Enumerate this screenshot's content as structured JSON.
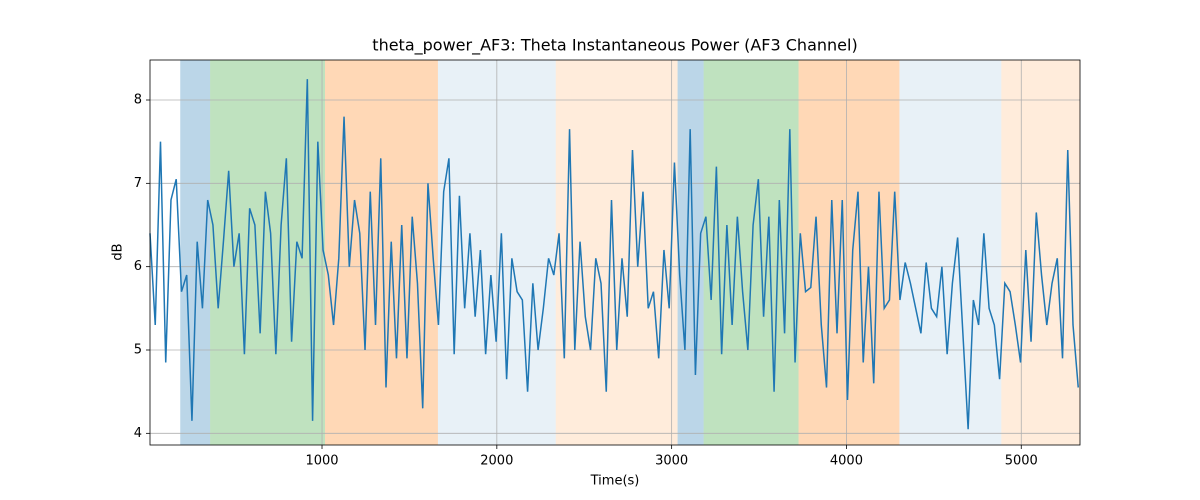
{
  "chart_data": {
    "type": "line",
    "title": "theta_power_AF3: Theta Instantaneous Power (AF3 Channel)",
    "xlabel": "Time(s)",
    "ylabel": "dB",
    "xlim": [
      16,
      5336
    ],
    "ylim": [
      3.86,
      8.48
    ],
    "xticks": [
      1000,
      2000,
      3000,
      4000,
      5000
    ],
    "yticks": [
      4,
      5,
      6,
      7,
      8
    ],
    "grid": true,
    "spans": [
      {
        "start": 189,
        "end": 360,
        "color": "#1f77b4",
        "opacity": 0.3
      },
      {
        "start": 360,
        "end": 1017,
        "color": "#2ca02c",
        "opacity": 0.3
      },
      {
        "start": 1017,
        "end": 1663,
        "color": "#ff7f0e",
        "opacity": 0.3
      },
      {
        "start": 1663,
        "end": 2337,
        "color": "#1f77b4",
        "opacity": 0.1
      },
      {
        "start": 2337,
        "end": 3034,
        "color": "#ff7f0e",
        "opacity": 0.15
      },
      {
        "start": 3034,
        "end": 3183,
        "color": "#1f77b4",
        "opacity": 0.3
      },
      {
        "start": 3183,
        "end": 3726,
        "color": "#2ca02c",
        "opacity": 0.3
      },
      {
        "start": 3726,
        "end": 4303,
        "color": "#ff7f0e",
        "opacity": 0.3
      },
      {
        "start": 4303,
        "end": 4886,
        "color": "#1f77b4",
        "opacity": 0.1
      },
      {
        "start": 4886,
        "end": 5336,
        "color": "#ff7f0e",
        "opacity": 0.15
      }
    ],
    "x": [
      16,
      46,
      76,
      106,
      136,
      166,
      196,
      226,
      256,
      286,
      316,
      346,
      376,
      406,
      436,
      466,
      496,
      526,
      556,
      586,
      616,
      646,
      676,
      706,
      736,
      766,
      796,
      826,
      856,
      886,
      916,
      946,
      976,
      1006,
      1036,
      1066,
      1096,
      1126,
      1156,
      1186,
      1216,
      1246,
      1276,
      1306,
      1336,
      1366,
      1396,
      1426,
      1456,
      1486,
      1516,
      1546,
      1576,
      1606,
      1636,
      1666,
      1696,
      1726,
      1756,
      1786,
      1816,
      1846,
      1876,
      1906,
      1936,
      1966,
      1996,
      2026,
      2056,
      2086,
      2116,
      2146,
      2176,
      2206,
      2236,
      2266,
      2296,
      2326,
      2356,
      2386,
      2416,
      2446,
      2476,
      2506,
      2536,
      2566,
      2596,
      2626,
      2656,
      2686,
      2716,
      2746,
      2776,
      2806,
      2836,
      2866,
      2896,
      2926,
      2956,
      2986,
      3016,
      3046,
      3076,
      3106,
      3136,
      3166,
      3196,
      3226,
      3256,
      3286,
      3316,
      3346,
      3376,
      3406,
      3436,
      3466,
      3496,
      3526,
      3556,
      3586,
      3616,
      3646,
      3676,
      3706,
      3736,
      3766,
      3796,
      3826,
      3856,
      3886,
      3916,
      3946,
      3976,
      4006,
      4036,
      4066,
      4096,
      4126,
      4156,
      4186,
      4216,
      4246,
      4276,
      4306,
      4336,
      4366,
      4396,
      4426,
      4456,
      4486,
      4516,
      4546,
      4576,
      4606,
      4636,
      4666,
      4696,
      4726,
      4756,
      4786,
      4816,
      4846,
      4876,
      4906,
      4936,
      4966,
      4996,
      5026,
      5056,
      5086,
      5116,
      5146,
      5176,
      5206,
      5236,
      5266,
      5296,
      5326
    ],
    "series": [
      {
        "name": "theta_power_AF3",
        "color": "#1f77b4",
        "values": [
          6.4,
          5.3,
          7.5,
          4.85,
          6.8,
          7.05,
          5.7,
          5.9,
          4.15,
          6.3,
          5.5,
          6.8,
          6.5,
          5.5,
          6.3,
          7.15,
          6.0,
          6.4,
          4.95,
          6.7,
          6.5,
          5.2,
          6.9,
          6.4,
          4.95,
          6.5,
          7.3,
          5.1,
          6.3,
          6.1,
          8.25,
          4.15,
          7.5,
          6.2,
          5.9,
          5.3,
          6.1,
          7.8,
          6.0,
          6.8,
          6.4,
          5.0,
          6.9,
          5.3,
          7.3,
          4.55,
          6.3,
          4.9,
          6.5,
          4.9,
          6.6,
          5.8,
          4.3,
          7.0,
          6.1,
          5.3,
          6.9,
          7.3,
          4.95,
          6.85,
          5.5,
          6.4,
          5.4,
          6.2,
          4.95,
          5.9,
          5.1,
          6.4,
          4.65,
          6.1,
          5.7,
          5.6,
          4.5,
          5.8,
          5.0,
          5.5,
          6.1,
          5.9,
          6.4,
          4.9,
          7.65,
          5.0,
          6.3,
          5.4,
          5.0,
          6.1,
          5.8,
          4.5,
          6.8,
          5.0,
          6.1,
          5.4,
          7.4,
          6.0,
          6.9,
          5.5,
          5.7,
          4.9,
          6.2,
          5.5,
          7.25,
          5.9,
          5.0,
          7.65,
          4.7,
          6.4,
          6.6,
          5.6,
          7.2,
          4.95,
          6.5,
          5.3,
          6.6,
          5.7,
          5.0,
          6.5,
          7.05,
          5.4,
          6.6,
          4.5,
          6.8,
          5.2,
          7.65,
          4.85,
          6.4,
          5.7,
          5.75,
          6.6,
          5.3,
          4.55,
          6.8,
          5.2,
          6.8,
          4.4,
          6.2,
          6.9,
          4.85,
          6.0,
          4.6,
          6.9,
          5.5,
          5.6,
          6.9,
          5.6,
          6.05,
          5.8,
          5.5,
          5.2,
          6.05,
          5.5,
          5.4,
          6.0,
          4.95,
          5.8,
          6.35,
          5.2,
          4.05,
          5.6,
          5.3,
          6.4,
          5.5,
          5.3,
          4.65,
          5.8,
          5.7,
          5.3,
          4.85,
          6.2,
          5.1,
          6.65,
          5.9,
          5.3,
          5.8,
          6.1,
          4.9,
          7.4,
          5.3,
          4.55
        ]
      }
    ]
  }
}
